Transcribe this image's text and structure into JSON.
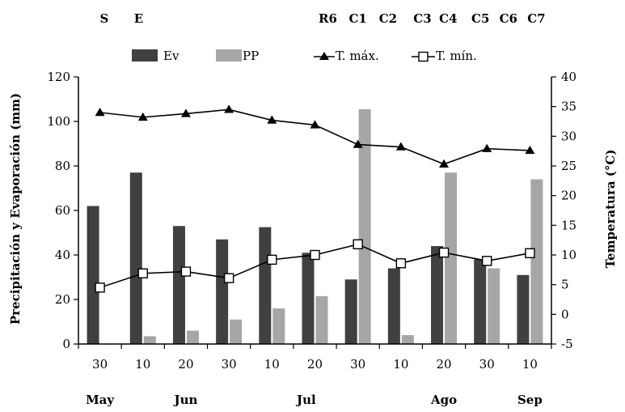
{
  "chart_data": {
    "type": "bar",
    "x": [
      "30",
      "10",
      "20",
      "30",
      "10",
      "20",
      "30",
      "10",
      "20",
      "30",
      "10"
    ],
    "months": [
      {
        "label": "May",
        "index": 0
      },
      {
        "label": "Jun",
        "index": 2
      },
      {
        "label": "Jul",
        "index": 4.8
      },
      {
        "label": "Ago",
        "index": 8
      },
      {
        "label": "Sep",
        "index": 10
      }
    ],
    "stages": [
      {
        "label": "S",
        "index": 0.1
      },
      {
        "label": "E",
        "index": 0.9
      },
      {
        "label": "R6",
        "index": 5.3
      },
      {
        "label": "C1",
        "index": 6.0
      },
      {
        "label": "C2",
        "index": 6.7
      },
      {
        "label": "C3",
        "index": 7.5
      },
      {
        "label": "C4",
        "index": 8.1
      },
      {
        "label": "C5",
        "index": 8.85
      },
      {
        "label": "C6",
        "index": 9.5
      },
      {
        "label": "C7",
        "index": 10.15
      }
    ],
    "series": [
      {
        "name": "Ev",
        "kind": "bar",
        "axis": "left",
        "color": "#404040",
        "values": [
          62,
          77,
          53,
          47,
          52.5,
          41,
          29,
          34,
          44,
          38,
          31
        ]
      },
      {
        "name": "PP",
        "kind": "bar",
        "axis": "left",
        "color": "#a6a6a6",
        "values": [
          0,
          3.5,
          6,
          11,
          16,
          21.5,
          105.5,
          4,
          77,
          34,
          74
        ]
      },
      {
        "name": "T. máx.",
        "kind": "line",
        "axis": "right",
        "marker": "triangle",
        "color": "#000000",
        "values": [
          34,
          33.2,
          33.8,
          34.5,
          32.7,
          31.9,
          28.6,
          28.2,
          25.3,
          27.9,
          27.6
        ]
      },
      {
        "name": "T. mín.",
        "kind": "line",
        "axis": "right",
        "marker": "square-open",
        "color": "#000000",
        "values": [
          4.5,
          6.9,
          7.2,
          6.1,
          9.2,
          10,
          11.8,
          8.6,
          10.4,
          9,
          10.3
        ]
      }
    ],
    "ylabel_left": "Precipitación  y Evaporación  (mm)",
    "ylabel_right": "Temperatura (°C)",
    "ylim_left": [
      0,
      120
    ],
    "yticks_left": [
      0,
      20,
      40,
      60,
      80,
      100,
      120
    ],
    "ylim_right": [
      -5,
      40
    ],
    "yticks_right": [
      -5,
      0,
      5,
      10,
      15,
      20,
      25,
      30,
      35,
      40
    ],
    "legend_placement": "top",
    "grid": false
  }
}
